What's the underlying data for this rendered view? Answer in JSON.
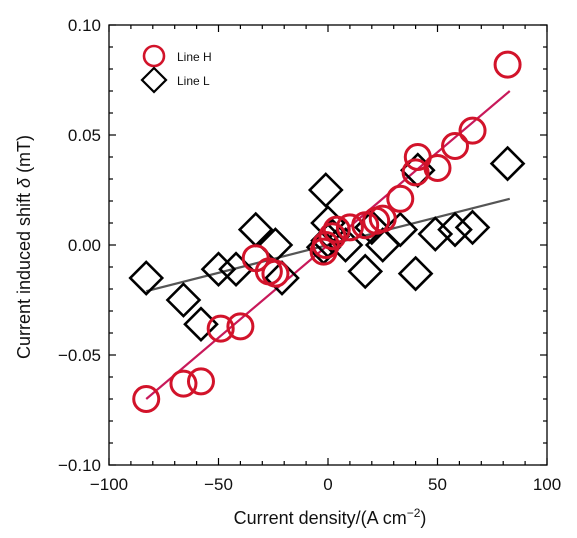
{
  "chart_data": {
    "type": "scatter",
    "title": "",
    "xlabel": "Current density/(A cm",
    "xlabel_sup": "−2",
    "xlabel_close": ")",
    "ylabel": "Current induced shift ",
    "ylabel_symbol": "δ",
    "ylabel_unit": " (mT)",
    "xlim": [
      -100,
      100
    ],
    "ylim": [
      -0.1,
      0.1
    ],
    "xticks": [
      -100,
      -50,
      0,
      50,
      100
    ],
    "xtick_labels": [
      "−100",
      "−50",
      "0",
      "50",
      "100"
    ],
    "yticks": [
      -0.1,
      -0.05,
      0.0,
      0.05,
      0.1
    ],
    "ytick_labels": [
      "−0.10",
      "−0.05",
      "0.00",
      "0.05",
      "0.10"
    ],
    "grid": false,
    "legend_position": "top-left",
    "series": [
      {
        "name": "Line H",
        "marker": "circle",
        "color": "#d2132a",
        "x": [
          -83,
          -66,
          -58,
          -49,
          -40,
          -33,
          -27,
          -24,
          -2,
          -1,
          2,
          4,
          10,
          17,
          22,
          25,
          33,
          40,
          41,
          50,
          58,
          66,
          82
        ],
        "y": [
          -0.07,
          -0.063,
          -0.062,
          -0.038,
          -0.037,
          -0.006,
          -0.012,
          -0.013,
          -0.003,
          0.0,
          0.004,
          0.007,
          0.008,
          0.009,
          0.011,
          0.012,
          0.021,
          0.033,
          0.04,
          0.035,
          0.045,
          0.052,
          0.082
        ],
        "fit": {
          "x": [
            -83,
            83
          ],
          "y": [
            -0.07,
            0.07
          ],
          "color": "#c8195a"
        }
      },
      {
        "name": "Line L",
        "marker": "diamond",
        "color": "#000000",
        "x": [
          -83,
          -66,
          -58,
          -50,
          -42,
          -33,
          -24,
          -21,
          -2,
          -1,
          0,
          0,
          2,
          8,
          17,
          20,
          25,
          33,
          40,
          41,
          49,
          58,
          66,
          82
        ],
        "y": [
          -0.015,
          -0.025,
          -0.036,
          -0.011,
          -0.011,
          0.007,
          0.0,
          -0.015,
          -0.001,
          0.025,
          0.01,
          0.002,
          0.004,
          0.0,
          -0.012,
          0.008,
          0.0,
          0.007,
          -0.013,
          0.034,
          0.005,
          0.007,
          0.008,
          0.037
        ],
        "fit": {
          "x": [
            -83,
            83
          ],
          "y": [
            -0.021,
            0.021
          ],
          "color": "#555555"
        }
      }
    ]
  }
}
